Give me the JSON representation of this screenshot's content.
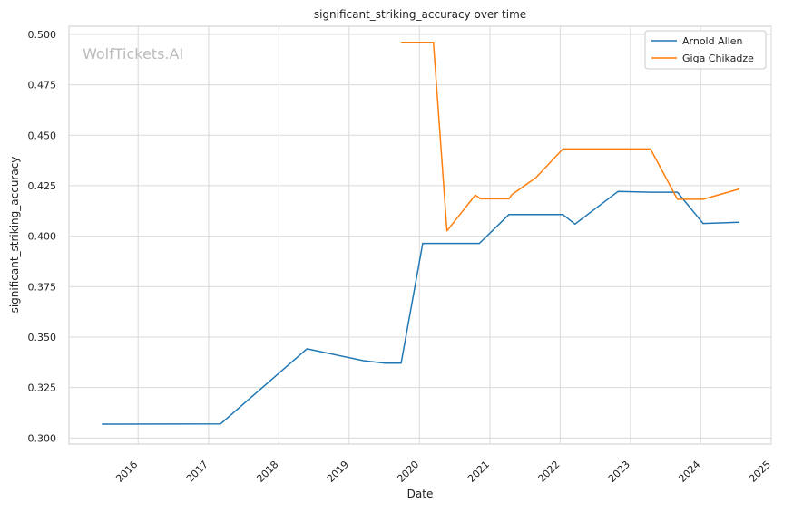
{
  "chart_data": {
    "type": "line",
    "title": "significant_striking_accuracy over time",
    "xlabel": "Date",
    "ylabel": "significant_striking_accuracy",
    "x_range": [
      "2015-01-07",
      "2025-01-01"
    ],
    "ylim": [
      0.297,
      0.504
    ],
    "x_ticks": [
      "2016",
      "2017",
      "2018",
      "2019",
      "2020",
      "2021",
      "2022",
      "2023",
      "2024",
      "2025"
    ],
    "y_ticks": [
      "0.300",
      "0.325",
      "0.350",
      "0.375",
      "0.400",
      "0.425",
      "0.450",
      "0.475",
      "0.500"
    ],
    "grid": true,
    "legend_position": "top-right",
    "watermark": "WolfTickets.AI",
    "series": [
      {
        "name": "Arnold Allen",
        "color": "#1f77b4",
        "points": [
          [
            "2015-06-27",
            0.3069
          ],
          [
            "2017-03-05",
            0.307
          ],
          [
            "2018-05-27",
            0.3442
          ],
          [
            "2019-03-16",
            0.3383
          ],
          [
            "2019-07-06",
            0.3371
          ],
          [
            "2019-09-28",
            0.3371
          ],
          [
            "2020-01-18",
            0.3964
          ],
          [
            "2020-11-07",
            0.3964
          ],
          [
            "2021-04-10",
            0.4107
          ],
          [
            "2022-01-15",
            0.4107
          ],
          [
            "2022-03-19",
            0.406
          ],
          [
            "2022-10-29",
            0.4222
          ],
          [
            "2023-04-15",
            0.4218
          ],
          [
            "2023-09-02",
            0.4218
          ],
          [
            "2024-01-13",
            0.4063
          ],
          [
            "2024-07-20",
            0.4069
          ]
        ]
      },
      {
        "name": "Giga Chikadze",
        "color": "#ff7f0e",
        "points": [
          [
            "2019-09-28",
            0.496
          ],
          [
            "2020-03-14",
            0.496
          ],
          [
            "2020-05-23",
            0.4026
          ],
          [
            "2020-10-17",
            0.4203
          ],
          [
            "2020-11-14",
            0.4185
          ],
          [
            "2021-04-10",
            0.4185
          ],
          [
            "2021-04-24",
            0.4205
          ],
          [
            "2021-08-28",
            0.429
          ],
          [
            "2022-01-15",
            0.4432
          ],
          [
            "2023-04-15",
            0.4432
          ],
          [
            "2023-09-02",
            0.4183
          ],
          [
            "2024-01-13",
            0.4183
          ],
          [
            "2024-07-20",
            0.4234
          ]
        ]
      }
    ]
  }
}
